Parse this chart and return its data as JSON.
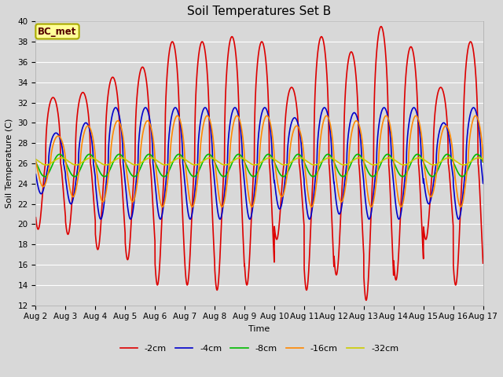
{
  "title": "Soil Temperatures Set B",
  "xlabel": "Time",
  "ylabel": "Soil Temperature (C)",
  "ylim": [
    12,
    40
  ],
  "yticks": [
    12,
    14,
    16,
    18,
    20,
    22,
    24,
    26,
    28,
    30,
    32,
    34,
    36,
    38,
    40
  ],
  "annotation": "BC_met",
  "series": [
    {
      "label": "-2cm",
      "color": "#dd0000",
      "linewidth": 1.2
    },
    {
      "label": "-4cm",
      "color": "#0000cc",
      "linewidth": 1.2
    },
    {
      "label": "-8cm",
      "color": "#00bb00",
      "linewidth": 1.2
    },
    {
      "label": "-16cm",
      "color": "#ff8800",
      "linewidth": 1.2
    },
    {
      "label": "-32cm",
      "color": "#cccc00",
      "linewidth": 1.2
    }
  ],
  "bg_color": "#d8d8d8",
  "title_fontsize": 11,
  "label_fontsize": 8,
  "tick_fontsize": 7.5,
  "legend_fontsize": 8,
  "n_days": 15,
  "xtick_labels": [
    "Aug 2",
    "Aug 3",
    "Aug 4",
    "Aug 5",
    "Aug 6",
    "Aug 7",
    "Aug 8",
    "Aug 9",
    "Aug 10",
    "Aug 11",
    "Aug 12",
    "Aug 13",
    "Aug 14",
    "Aug 15",
    "Aug 16",
    "Aug 17"
  ]
}
